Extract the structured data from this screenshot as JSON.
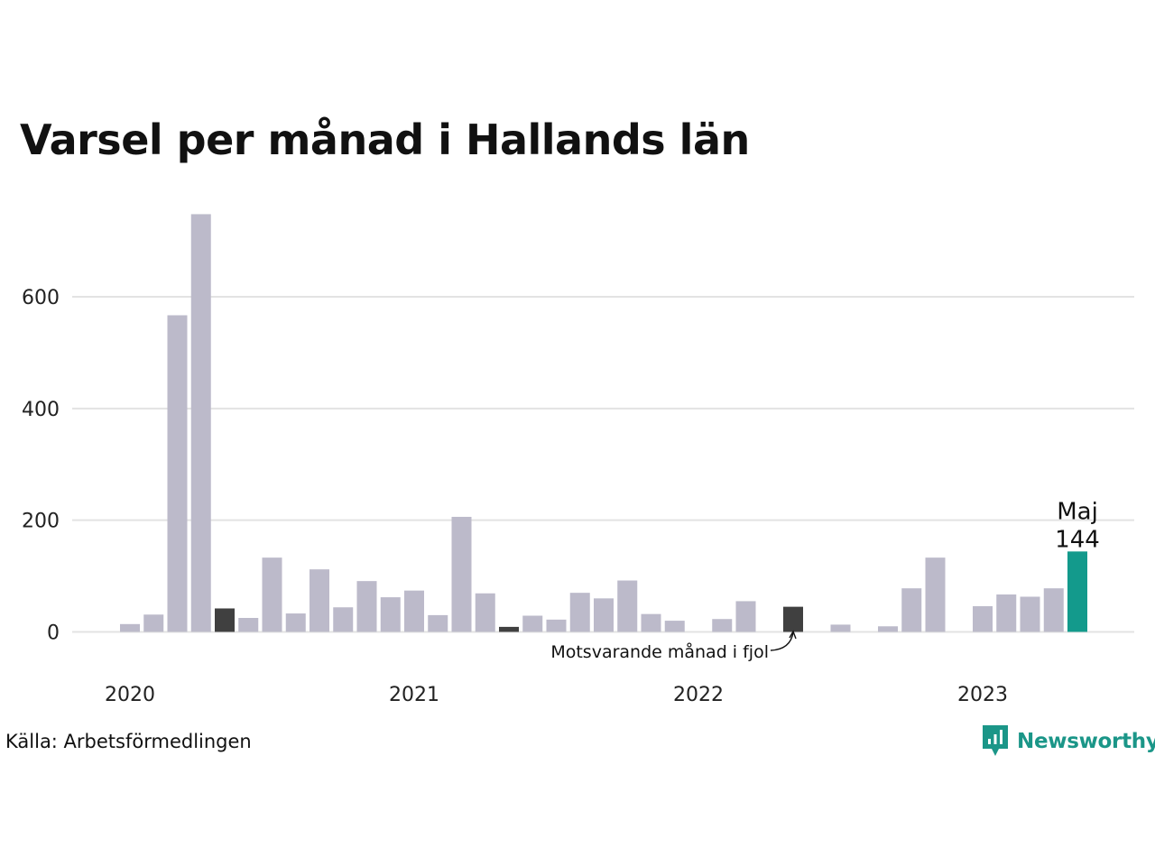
{
  "title": "Varsel per månad i Hallands län",
  "source": "Källa: Arbetsförmedlingen",
  "logo": {
    "text": "Newsworthy",
    "icon": "bar-chart-speech-bubble-icon"
  },
  "colors": {
    "default": "#bcbaca",
    "same_month_last_year": "#404040",
    "current": "#139a8c",
    "grid": "#e3e3e3"
  },
  "chart_data": {
    "type": "bar",
    "ylim": [
      -80,
      760
    ],
    "yticks": [
      0,
      200,
      400,
      600
    ],
    "x_labels": [
      {
        "label": "2020",
        "index": 0
      },
      {
        "label": "2021",
        "index": 12
      },
      {
        "label": "2022",
        "index": 24
      },
      {
        "label": "2023",
        "index": 36
      }
    ],
    "categories": [
      "2020-01",
      "2020-02",
      "2020-03",
      "2020-04",
      "2020-05",
      "2020-06",
      "2020-07",
      "2020-08",
      "2020-09",
      "2020-10",
      "2020-11",
      "2020-12",
      "2021-01",
      "2021-02",
      "2021-03",
      "2021-04",
      "2021-05",
      "2021-06",
      "2021-07",
      "2021-08",
      "2021-09",
      "2021-10",
      "2021-11",
      "2021-12",
      "2022-01",
      "2022-02",
      "2022-03",
      "2022-04",
      "2022-05",
      "2022-06",
      "2022-07",
      "2022-08",
      "2022-09",
      "2022-10",
      "2022-11",
      "2022-12",
      "2023-01",
      "2023-02",
      "2023-03",
      "2023-04",
      "2023-05"
    ],
    "values": [
      14,
      31,
      567,
      748,
      42,
      25,
      133,
      33,
      112,
      44,
      91,
      62,
      74,
      30,
      206,
      69,
      9,
      29,
      22,
      70,
      60,
      92,
      32,
      20,
      0,
      23,
      55,
      0,
      45,
      0,
      13,
      0,
      10,
      78,
      133,
      0,
      46,
      67,
      63,
      78,
      144
    ],
    "highlight": [
      {
        "index": 4,
        "role": "same_month_last_year"
      },
      {
        "index": 16,
        "role": "same_month_last_year"
      },
      {
        "index": 28,
        "role": "same_month_last_year"
      },
      {
        "index": 40,
        "role": "current"
      }
    ],
    "annotations": {
      "current_month": "Maj",
      "current_value": "144",
      "last_year_note": "Motsvarande månad i fjol"
    }
  }
}
